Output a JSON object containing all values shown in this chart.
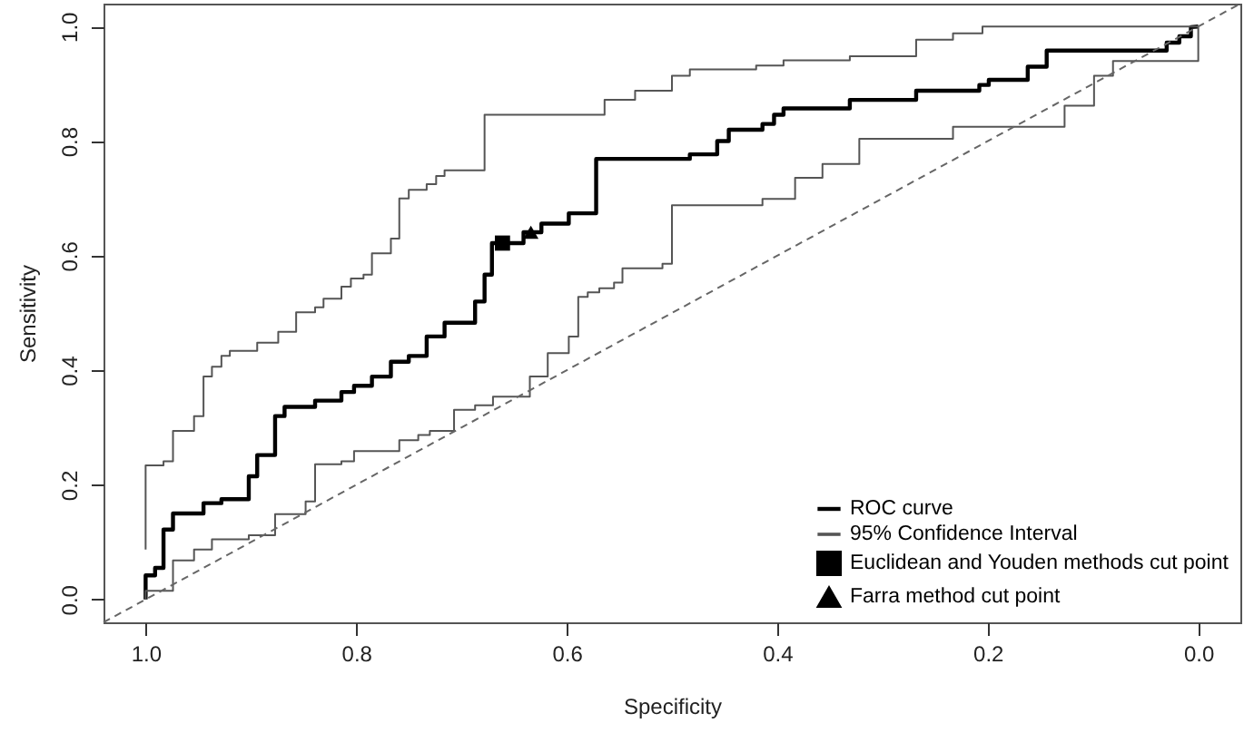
{
  "chart_data": {
    "type": "line",
    "xlabel": "Specificity",
    "ylabel": "Sensitivity",
    "xlim": [
      1.04,
      -0.04
    ],
    "ylim": [
      -0.04,
      1.04
    ],
    "xticks": [
      {
        "value": 1,
        "label": "1.0"
      },
      0.8,
      0.6,
      0.4,
      0.2,
      {
        "value": 0,
        "label": "0.0"
      }
    ],
    "yticks": [
      {
        "value": 0,
        "label": "0.0"
      },
      0.2,
      0.4,
      0.6,
      0.8,
      {
        "value": 1,
        "label": "1.0"
      }
    ],
    "grid": false,
    "legend": "bottom right",
    "series": [
      {
        "name": "ROC curve",
        "color": "#000000",
        "x": [
          1.0,
          1.0,
          0.991,
          0.991,
          0.983,
          0.983,
          0.974,
          0.974,
          0.945,
          0.945,
          0.928,
          0.928,
          0.902,
          0.902,
          0.894,
          0.894,
          0.877,
          0.877,
          0.868,
          0.868,
          0.839,
          0.839,
          0.814,
          0.814,
          0.802,
          0.802,
          0.785,
          0.785,
          0.767,
          0.767,
          0.75,
          0.75,
          0.733,
          0.733,
          0.716,
          0.716,
          0.687,
          0.687,
          0.678,
          0.678,
          0.671,
          0.671,
          0.641,
          0.641,
          0.624,
          0.624,
          0.598,
          0.598,
          0.572,
          0.572,
          0.483,
          0.483,
          0.457,
          0.457,
          0.446,
          0.446,
          0.414,
          0.414,
          0.403,
          0.403,
          0.394,
          0.394,
          0.331,
          0.331,
          0.268,
          0.268,
          0.208,
          0.208,
          0.199,
          0.199,
          0.162,
          0.162,
          0.144,
          0.144,
          0.03,
          0.03,
          0.018,
          0.018,
          0.007,
          0.007,
          0.0
        ],
        "values": [
          0,
          0.042,
          0.042,
          0.055,
          0.055,
          0.122,
          0.122,
          0.15,
          0.15,
          0.168,
          0.168,
          0.175,
          0.175,
          0.215,
          0.215,
          0.252,
          0.252,
          0.32,
          0.32,
          0.336,
          0.336,
          0.347,
          0.347,
          0.362,
          0.362,
          0.373,
          0.373,
          0.389,
          0.389,
          0.415,
          0.415,
          0.425,
          0.425,
          0.459,
          0.459,
          0.483,
          0.483,
          0.52,
          0.52,
          0.567,
          0.567,
          0.622,
          0.622,
          0.641,
          0.641,
          0.656,
          0.656,
          0.674,
          0.674,
          0.769,
          0.769,
          0.777,
          0.777,
          0.8,
          0.8,
          0.82,
          0.82,
          0.83,
          0.83,
          0.846,
          0.846,
          0.857,
          0.857,
          0.872,
          0.872,
          0.888,
          0.888,
          0.898,
          0.898,
          0.907,
          0.907,
          0.93,
          0.93,
          0.958,
          0.958,
          0.972,
          0.972,
          0.983,
          0.983,
          0.999,
          1.0
        ]
      },
      {
        "name": "95% Confidence Interval",
        "color": "#555555",
        "x": [
          1.0,
          1.0,
          0.983,
          0.983,
          0.974,
          0.974,
          0.954,
          0.954,
          0.945,
          0.945,
          0.937,
          0.937,
          0.928,
          0.928,
          0.92,
          0.92,
          0.894,
          0.894,
          0.874,
          0.874,
          0.857,
          0.857,
          0.839,
          0.839,
          0.831,
          0.831,
          0.814,
          0.814,
          0.805,
          0.805,
          0.793,
          0.793,
          0.785,
          0.785,
          0.767,
          0.767,
          0.759,
          0.759,
          0.75,
          0.75,
          0.733,
          0.733,
          0.724,
          0.724,
          0.716,
          0.716,
          0.678,
          0.678,
          0.564,
          0.564,
          0.535,
          0.535,
          0.5,
          0.5,
          0.483,
          0.483,
          0.42,
          0.42,
          0.394,
          0.394,
          0.331,
          0.331,
          0.268,
          0.268,
          0.233,
          0.233,
          0.205,
          0.205,
          0.0
        ],
        "values": [
          0.087,
          0.234,
          0.234,
          0.241,
          0.241,
          0.294,
          0.294,
          0.32,
          0.32,
          0.389,
          0.389,
          0.406,
          0.406,
          0.425,
          0.425,
          0.434,
          0.434,
          0.448,
          0.448,
          0.467,
          0.467,
          0.501,
          0.501,
          0.51,
          0.51,
          0.525,
          0.525,
          0.546,
          0.546,
          0.56,
          0.56,
          0.567,
          0.567,
          0.604,
          0.604,
          0.63,
          0.63,
          0.7,
          0.7,
          0.715,
          0.715,
          0.725,
          0.725,
          0.739,
          0.739,
          0.749,
          0.749,
          0.846,
          0.846,
          0.872,
          0.872,
          0.888,
          0.888,
          0.914,
          0.914,
          0.925,
          0.925,
          0.932,
          0.932,
          0.941,
          0.941,
          0.948,
          0.948,
          0.977,
          0.977,
          0.988,
          0.988,
          1.0,
          1.0
        ]
      },
      {
        "color": "#555555",
        "x": [
          1.0,
          1.0,
          0.974,
          0.974,
          0.954,
          0.954,
          0.937,
          0.937,
          0.902,
          0.902,
          0.877,
          0.877,
          0.848,
          0.848,
          0.839,
          0.839,
          0.814,
          0.814,
          0.802,
          0.802,
          0.759,
          0.759,
          0.741,
          0.741,
          0.73,
          0.73,
          0.707,
          0.707,
          0.687,
          0.687,
          0.67,
          0.67,
          0.635,
          0.635,
          0.618,
          0.618,
          0.598,
          0.598,
          0.589,
          0.589,
          0.58,
          0.58,
          0.569,
          0.569,
          0.555,
          0.555,
          0.547,
          0.547,
          0.509,
          0.509,
          0.5,
          0.5,
          0.414,
          0.414,
          0.383,
          0.383,
          0.357,
          0.357,
          0.322,
          0.322,
          0.233,
          0.233,
          0.127,
          0.127,
          0.099,
          0.099,
          0.081,
          0.081,
          0.0,
          0.0
        ],
        "values": [
          0,
          0.015,
          0.015,
          0.068,
          0.068,
          0.087,
          0.087,
          0.105,
          0.105,
          0.112,
          0.112,
          0.149,
          0.149,
          0.171,
          0.171,
          0.236,
          0.236,
          0.241,
          0.241,
          0.259,
          0.259,
          0.278,
          0.278,
          0.287,
          0.287,
          0.294,
          0.294,
          0.331,
          0.331,
          0.339,
          0.339,
          0.354,
          0.354,
          0.389,
          0.389,
          0.43,
          0.43,
          0.459,
          0.459,
          0.528,
          0.528,
          0.536,
          0.536,
          0.543,
          0.543,
          0.553,
          0.553,
          0.578,
          0.578,
          0.586,
          0.586,
          0.688,
          0.688,
          0.699,
          0.699,
          0.736,
          0.736,
          0.76,
          0.76,
          0.804,
          0.804,
          0.825,
          0.825,
          0.862,
          0.862,
          0.914,
          0.914,
          0.94,
          0.94,
          1.0
        ]
      },
      {
        "color": "#666666",
        "line_style": "dashed",
        "x": [
          1.04,
          -0.04
        ],
        "values": [
          -0.04,
          1.04
        ]
      },
      {
        "name": "Euclidean and Youden methods cut point",
        "type": "scatter",
        "marker": "square",
        "color": "#000000",
        "x": [
          0.661
        ],
        "values": [
          0.622
        ]
      },
      {
        "name": "Farra method cut point",
        "type": "scatter",
        "marker": "triangle",
        "color": "#000000",
        "x": [
          0.634
        ],
        "values": [
          0.641
        ]
      }
    ]
  }
}
